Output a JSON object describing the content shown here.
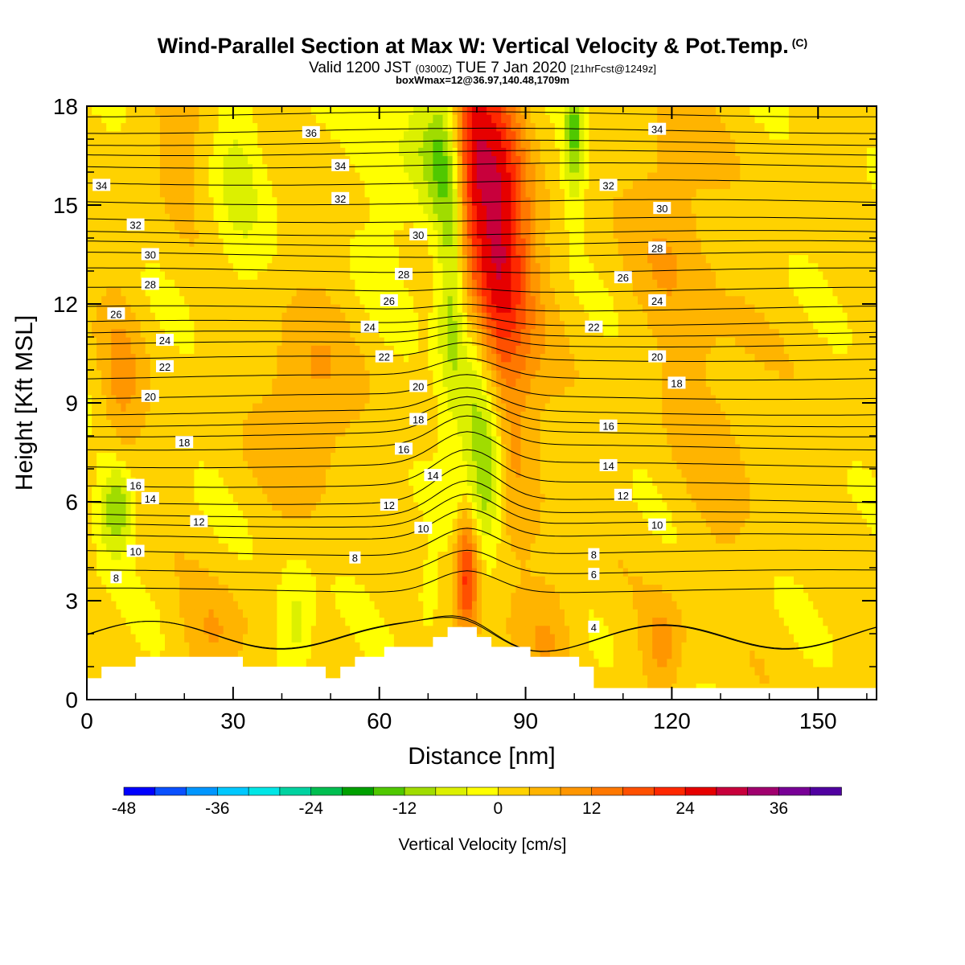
{
  "header": {
    "title": "Wind-Parallel Section at Max W: Vertical Velocity & Pot.Temp.",
    "title_mark": "(C)",
    "valid_prefix": "Valid 1200 JST",
    "valid_utc": "(0300Z)",
    "valid_date": "TUE 7 Jan 2020",
    "forecast": "[21hrFcst@1249z]",
    "box_info": "boxWmax=12@36.97,140.48,1709m"
  },
  "chart_data": {
    "type": "heatmap",
    "xlabel": "Distance [nm]",
    "ylabel": "Height [Kft MSL]",
    "xlim": [
      0,
      162
    ],
    "ylim": [
      0,
      18
    ],
    "x_ticks": [
      0,
      30,
      60,
      90,
      120,
      150
    ],
    "y_ticks": [
      0,
      3,
      6,
      9,
      12,
      15,
      18
    ],
    "grid": false,
    "colorbar": {
      "label": "Vertical Velocity [cm/s]",
      "tick_labels": [
        -48,
        -36,
        -24,
        -12,
        0,
        12,
        24,
        36
      ],
      "colors": [
        "#0000ff",
        "#0a50ff",
        "#0096ff",
        "#00c8ff",
        "#00e6e6",
        "#00d2a0",
        "#00be50",
        "#00a000",
        "#50c800",
        "#a0dc00",
        "#dcf000",
        "#ffff00",
        "#ffd200",
        "#ffb400",
        "#ff9600",
        "#ff7800",
        "#ff5000",
        "#ff2800",
        "#e60000",
        "#c8003c",
        "#a0006e",
        "#780096",
        "#5000a0"
      ]
    },
    "terrain_kft": [
      [
        0,
        0.65
      ],
      [
        3,
        0.65
      ],
      [
        3,
        1.0
      ],
      [
        10,
        1.0
      ],
      [
        10,
        1.3
      ],
      [
        32,
        1.3
      ],
      [
        32,
        1.0
      ],
      [
        49,
        1.0
      ],
      [
        49,
        0.65
      ],
      [
        52,
        0.65
      ],
      [
        52,
        1.0
      ],
      [
        55,
        1.0
      ],
      [
        55,
        1.3
      ],
      [
        61,
        1.3
      ],
      [
        61,
        1.6
      ],
      [
        71,
        1.6
      ],
      [
        71,
        1.9
      ],
      [
        74,
        1.9
      ],
      [
        74,
        2.2
      ],
      [
        80,
        2.2
      ],
      [
        80,
        1.9
      ],
      [
        83,
        1.9
      ],
      [
        83,
        1.6
      ],
      [
        91,
        1.6
      ],
      [
        91,
        1.3
      ],
      [
        101,
        1.3
      ],
      [
        101,
        1.0
      ],
      [
        104,
        1.0
      ],
      [
        104,
        0.35
      ],
      [
        162,
        0.35
      ]
    ],
    "w_field": [
      {
        "x": 78,
        "y": 16.5,
        "sx": 3,
        "sy": 2.5,
        "w": 18
      },
      {
        "x": 84,
        "y": 15.5,
        "sx": 4,
        "sy": 3.5,
        "w": 18
      },
      {
        "x": 85,
        "y": 12.8,
        "sx": 5,
        "sy": 2.5,
        "w": 12
      },
      {
        "x": 88,
        "y": 8.5,
        "sx": 5,
        "sy": 3,
        "w": 6
      },
      {
        "x": 78,
        "y": 3.9,
        "sx": 1.7,
        "sy": 1.3,
        "w": 22
      },
      {
        "x": 75,
        "y": 13.5,
        "sx": 2.2,
        "sy": 3.5,
        "w": -16
      },
      {
        "x": 72,
        "y": 16.5,
        "sx": 3,
        "sy": 1.5,
        "w": -10
      },
      {
        "x": 100,
        "y": 17.2,
        "sx": 1.5,
        "sy": 1.5,
        "w": -14
      },
      {
        "x": 80,
        "y": 8.5,
        "sx": 2.5,
        "sy": 2.5,
        "w": -14
      },
      {
        "x": 83,
        "y": 7.0,
        "sx": 2,
        "sy": 1.5,
        "w": -12
      },
      {
        "x": 6,
        "y": 5.8,
        "sx": 2.5,
        "sy": 1.0,
        "w": -14
      },
      {
        "x": 43,
        "y": 2.2,
        "sx": 2.5,
        "sy": 1.2,
        "w": -8
      },
      {
        "x": 31,
        "y": 16.0,
        "sx": 4,
        "sy": 2.5,
        "w": -6
      },
      {
        "x": 64,
        "y": 16.5,
        "sx": 5,
        "sy": 2.5,
        "w": -5
      },
      {
        "x": 70,
        "y": 3.2,
        "sx": 1.5,
        "sy": 0.8,
        "w": -6
      },
      {
        "x": 45,
        "y": 9.0,
        "sx": 6,
        "sy": 2.0,
        "w": 8
      },
      {
        "x": 7,
        "y": 9.5,
        "sx": 3,
        "sy": 2,
        "w": 7
      },
      {
        "x": 120,
        "y": 14.5,
        "sx": 6,
        "sy": 3,
        "w": 6
      },
      {
        "x": 118,
        "y": 1.6,
        "sx": 3,
        "sy": 1,
        "w": 8
      },
      {
        "x": 95,
        "y": 2.2,
        "sx": 4,
        "sy": 1.2,
        "w": 6
      },
      {
        "x": 26,
        "y": 2.0,
        "sx": 5,
        "sy": 1,
        "w": 6
      },
      {
        "x": 130,
        "y": 8.0,
        "sx": 6,
        "sy": 3,
        "w": 4
      },
      {
        "x": 20,
        "y": 17.0,
        "sx": 6,
        "sy": 1.5,
        "w": 4
      }
    ],
    "isentrope_levels": [
      3,
      4,
      5,
      6,
      7,
      8,
      9,
      10,
      11,
      12,
      13,
      14,
      15,
      16,
      17,
      18,
      19,
      20,
      21,
      22,
      23,
      24,
      25,
      26,
      27,
      28,
      29,
      30,
      31,
      32,
      33,
      34,
      35,
      36,
      37
    ],
    "isentrope_labels": [
      {
        "text": "36",
        "x": 46,
        "y": 17.2
      },
      {
        "text": "34",
        "x": 52,
        "y": 16.2
      },
      {
        "text": "32",
        "x": 52,
        "y": 15.2
      },
      {
        "text": "30",
        "x": 68,
        "y": 14.1
      },
      {
        "text": "28",
        "x": 65,
        "y": 12.9
      },
      {
        "text": "26",
        "x": 62,
        "y": 12.1
      },
      {
        "text": "24",
        "x": 58,
        "y": 11.3
      },
      {
        "text": "22",
        "x": 61,
        "y": 10.4
      },
      {
        "text": "20",
        "x": 68,
        "y": 9.5
      },
      {
        "text": "18",
        "x": 68,
        "y": 8.5
      },
      {
        "text": "16",
        "x": 65,
        "y": 7.6
      },
      {
        "text": "14",
        "x": 71,
        "y": 6.8
      },
      {
        "text": "12",
        "x": 62,
        "y": 5.9
      },
      {
        "text": "10",
        "x": 69,
        "y": 5.2
      },
      {
        "text": "8",
        "x": 55,
        "y": 4.3
      },
      {
        "text": "34",
        "x": 3,
        "y": 15.6
      },
      {
        "text": "32",
        "x": 10,
        "y": 14.4
      },
      {
        "text": "30",
        "x": 13,
        "y": 13.5
      },
      {
        "text": "28",
        "x": 13,
        "y": 12.6
      },
      {
        "text": "26",
        "x": 6,
        "y": 11.7
      },
      {
        "text": "24",
        "x": 16,
        "y": 10.9
      },
      {
        "text": "22",
        "x": 16,
        "y": 10.1
      },
      {
        "text": "20",
        "x": 13,
        "y": 9.2
      },
      {
        "text": "18",
        "x": 20,
        "y": 7.8
      },
      {
        "text": "16",
        "x": 10,
        "y": 6.5
      },
      {
        "text": "14",
        "x": 13,
        "y": 6.1
      },
      {
        "text": "12",
        "x": 23,
        "y": 5.4
      },
      {
        "text": "10",
        "x": 10,
        "y": 4.5
      },
      {
        "text": "8",
        "x": 6,
        "y": 3.7
      },
      {
        "text": "34",
        "x": 117,
        "y": 17.3
      },
      {
        "text": "32",
        "x": 107,
        "y": 15.6
      },
      {
        "text": "30",
        "x": 118,
        "y": 14.9
      },
      {
        "text": "28",
        "x": 117,
        "y": 13.7
      },
      {
        "text": "26",
        "x": 110,
        "y": 12.8
      },
      {
        "text": "24",
        "x": 117,
        "y": 12.1
      },
      {
        "text": "22",
        "x": 104,
        "y": 11.3
      },
      {
        "text": "20",
        "x": 117,
        "y": 10.4
      },
      {
        "text": "18",
        "x": 121,
        "y": 9.6
      },
      {
        "text": "16",
        "x": 107,
        "y": 8.3
      },
      {
        "text": "14",
        "x": 107,
        "y": 7.1
      },
      {
        "text": "12",
        "x": 110,
        "y": 6.2
      },
      {
        "text": "10",
        "x": 117,
        "y": 5.3
      },
      {
        "text": "8",
        "x": 104,
        "y": 4.4
      },
      {
        "text": "6",
        "x": 104,
        "y": 3.8
      },
      {
        "text": "4",
        "x": 104,
        "y": 2.2
      }
    ]
  }
}
